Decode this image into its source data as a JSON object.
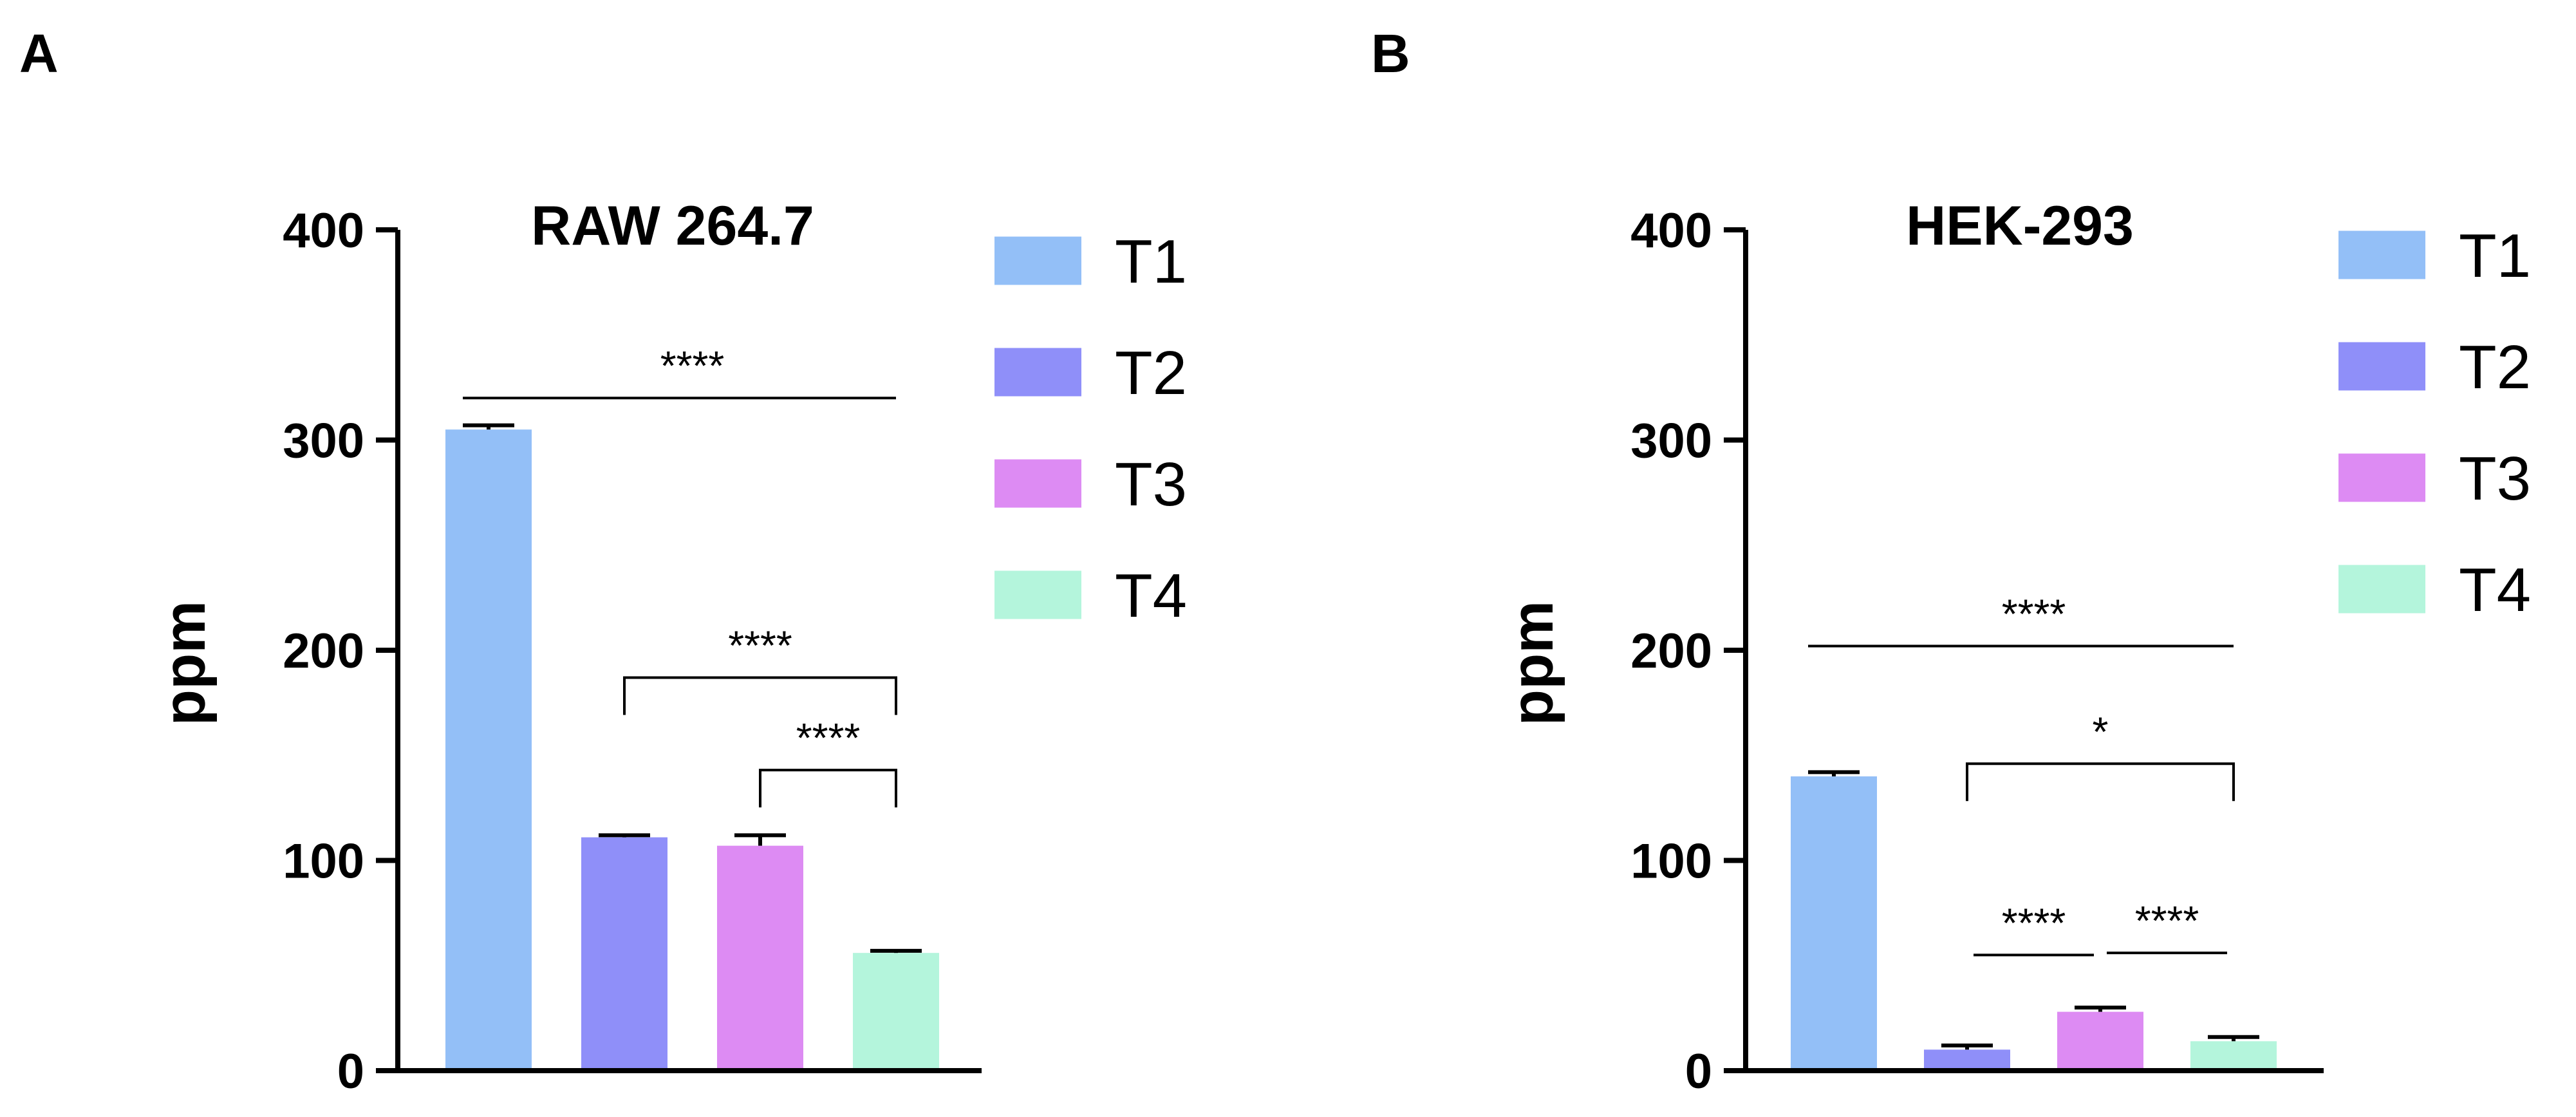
{
  "panels": [
    {
      "letter": "A"
    },
    {
      "letter": "B"
    }
  ],
  "chart_data": [
    {
      "type": "bar",
      "title": "RAW 264.7",
      "xlabel": "",
      "ylabel": "ppm",
      "ylim": [
        0,
        400
      ],
      "yticks": [
        0,
        100,
        200,
        300,
        400
      ],
      "categories": [
        "T1",
        "T2",
        "T3",
        "T4"
      ],
      "values": [
        305,
        111,
        107,
        56
      ],
      "errors": [
        2,
        1,
        5,
        1
      ],
      "colors": [
        "#93bff7",
        "#8f8ff9",
        "#dd8bf3",
        "#b4f5dc"
      ],
      "legend": {
        "position": "right",
        "entries": [
          "T1",
          "T2",
          "T3",
          "T4"
        ]
      },
      "significance": [
        {
          "from": 0,
          "to": 3,
          "label": "****",
          "y": 320,
          "style": "line"
        },
        {
          "from": 1,
          "to": 3,
          "label": "****",
          "y": 187,
          "style": "bracket"
        },
        {
          "from": 2,
          "to": 3,
          "label": "****",
          "y": 143,
          "style": "bracket"
        }
      ]
    },
    {
      "type": "bar",
      "title": "HEK-293",
      "xlabel": "",
      "ylabel": "ppm",
      "ylim": [
        0,
        400
      ],
      "yticks": [
        0,
        100,
        200,
        300,
        400
      ],
      "categories": [
        "T1",
        "T2",
        "T3",
        "T4"
      ],
      "values": [
        140,
        10,
        28,
        14
      ],
      "errors": [
        2,
        2,
        2,
        2
      ],
      "colors": [
        "#93bff7",
        "#8f8ff9",
        "#dd8bf3",
        "#b4f5dc"
      ],
      "legend": {
        "position": "right",
        "entries": [
          "T1",
          "T2",
          "T3",
          "T4"
        ]
      },
      "significance": [
        {
          "from": 0,
          "to": 3,
          "label": "****",
          "y": 202,
          "style": "line"
        },
        {
          "from": 1,
          "to": 3,
          "label": "*",
          "y": 146,
          "style": "bracket"
        },
        {
          "from": 1,
          "to": 2,
          "label": "****",
          "y": 55,
          "style": "line"
        },
        {
          "from": 2,
          "to": 3,
          "label": "****",
          "y": 56,
          "style": "line"
        }
      ]
    }
  ]
}
